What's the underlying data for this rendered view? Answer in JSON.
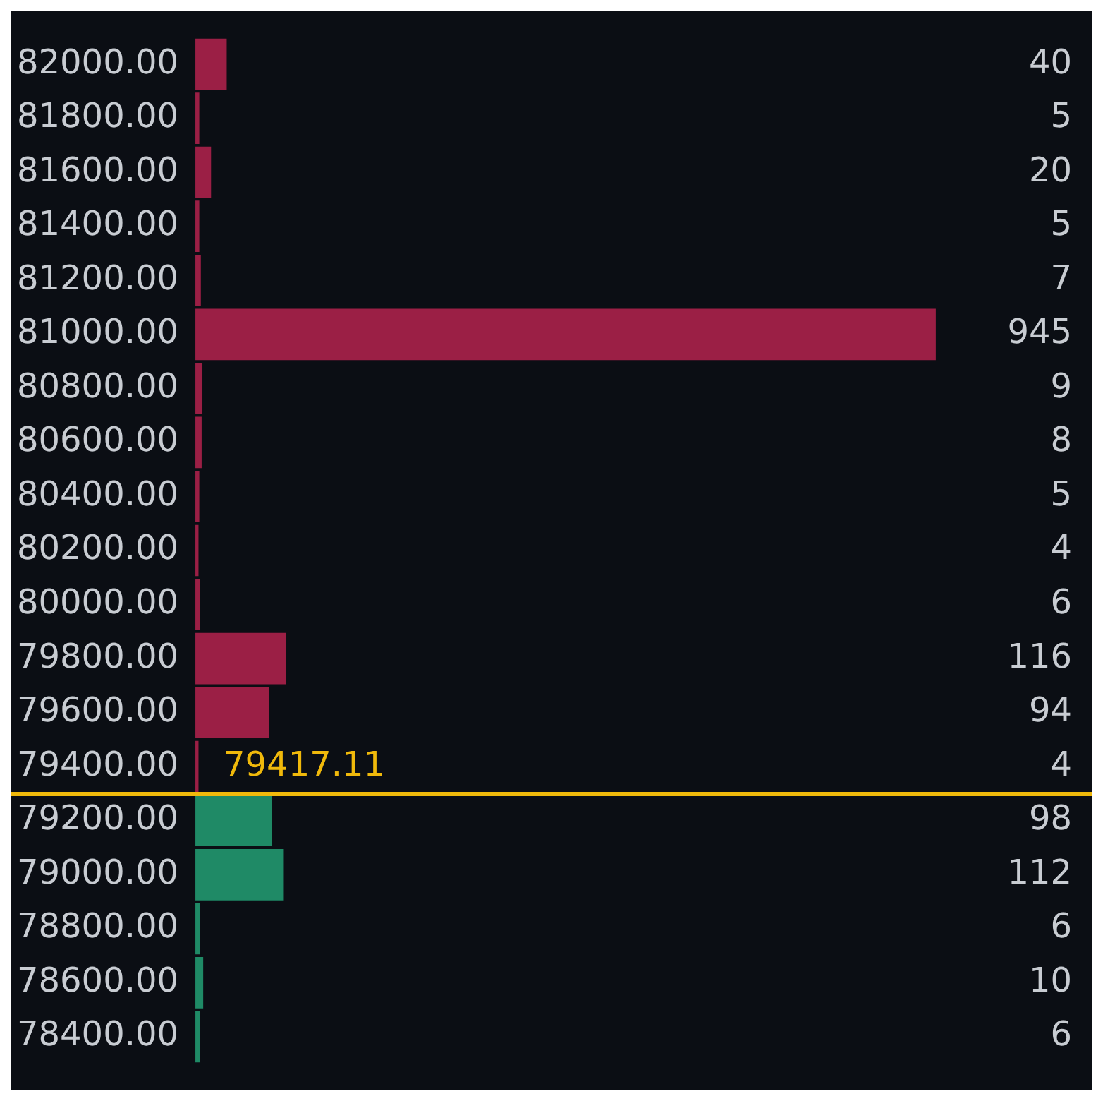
{
  "chart_data": {
    "type": "bar",
    "orientation": "horizontal",
    "categories": [
      "82000.00",
      "81800.00",
      "81600.00",
      "81400.00",
      "81200.00",
      "81000.00",
      "80800.00",
      "80600.00",
      "80400.00",
      "80200.00",
      "80000.00",
      "79800.00",
      "79600.00",
      "79400.00",
      "79200.00",
      "79000.00",
      "78800.00",
      "78600.00",
      "78400.00"
    ],
    "values": [
      40,
      5,
      20,
      5,
      7,
      945,
      9,
      8,
      5,
      4,
      6,
      116,
      94,
      4,
      98,
      112,
      6,
      10,
      6
    ],
    "colors": [
      "#9b1f45",
      "#9b1f45",
      "#9b1f45",
      "#9b1f45",
      "#9b1f45",
      "#9b1f45",
      "#9b1f45",
      "#9b1f45",
      "#9b1f45",
      "#9b1f45",
      "#9b1f45",
      "#9b1f45",
      "#9b1f45",
      "#9b1f45",
      "#1f8a66",
      "#1f8a66",
      "#1f8a66",
      "#1f8a66",
      "#1f8a66"
    ],
    "data_labels": true,
    "grid": false,
    "legend": false,
    "annotations": [
      "79417.11"
    ]
  }
}
